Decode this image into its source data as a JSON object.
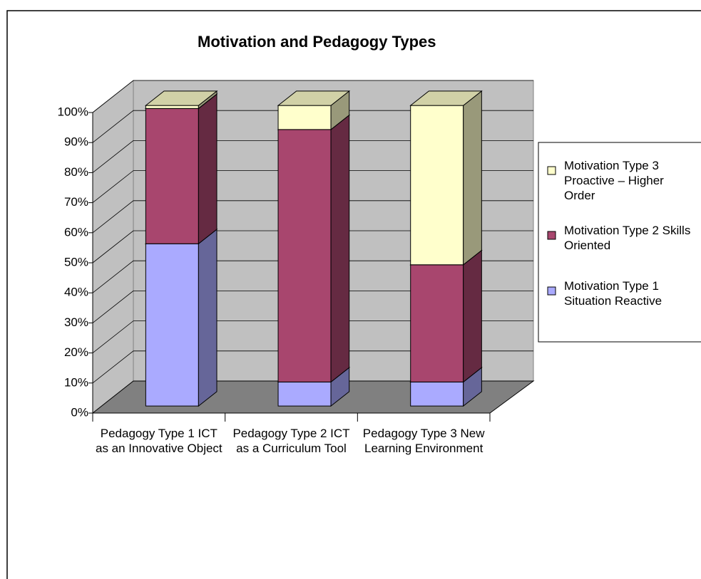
{
  "chart_data": {
    "type": "bar3d_stacked",
    "title": "Motivation and Pedagogy Types",
    "categories": [
      "Pedagogy Type 1 ICT as an Innovative Object",
      "Pedagogy Type 2 ICT as a Curriculum Tool",
      "Pedagogy Type 3 New Learning Environment"
    ],
    "series": [
      {
        "name": "Motivation Type 1 Situation Reactive",
        "color": "#aaaaff",
        "values": [
          54,
          8,
          8
        ]
      },
      {
        "name": "Motivation Type 2 Skills Oriented",
        "color": "#a8466e",
        "values": [
          45,
          84,
          39
        ]
      },
      {
        "name": "Motivation Type 3 Proactive – Higher Order",
        "color": "#ffffcc",
        "values": [
          1,
          8,
          53
        ]
      }
    ],
    "ylim": [
      0,
      100
    ],
    "yticks": [
      {
        "value": 0,
        "label": "0%"
      },
      {
        "value": 10,
        "label": "10%"
      },
      {
        "value": 20,
        "label": "20%"
      },
      {
        "value": 30,
        "label": "30%"
      },
      {
        "value": 40,
        "label": "40%"
      },
      {
        "value": 50,
        "label": "50%"
      },
      {
        "value": 60,
        "label": "60%"
      },
      {
        "value": 70,
        "label": "70%"
      },
      {
        "value": 80,
        "label": "80%"
      },
      {
        "value": 90,
        "label": "90%"
      },
      {
        "value": 100,
        "label": "100%"
      }
    ],
    "grid": true,
    "legend": "right"
  }
}
